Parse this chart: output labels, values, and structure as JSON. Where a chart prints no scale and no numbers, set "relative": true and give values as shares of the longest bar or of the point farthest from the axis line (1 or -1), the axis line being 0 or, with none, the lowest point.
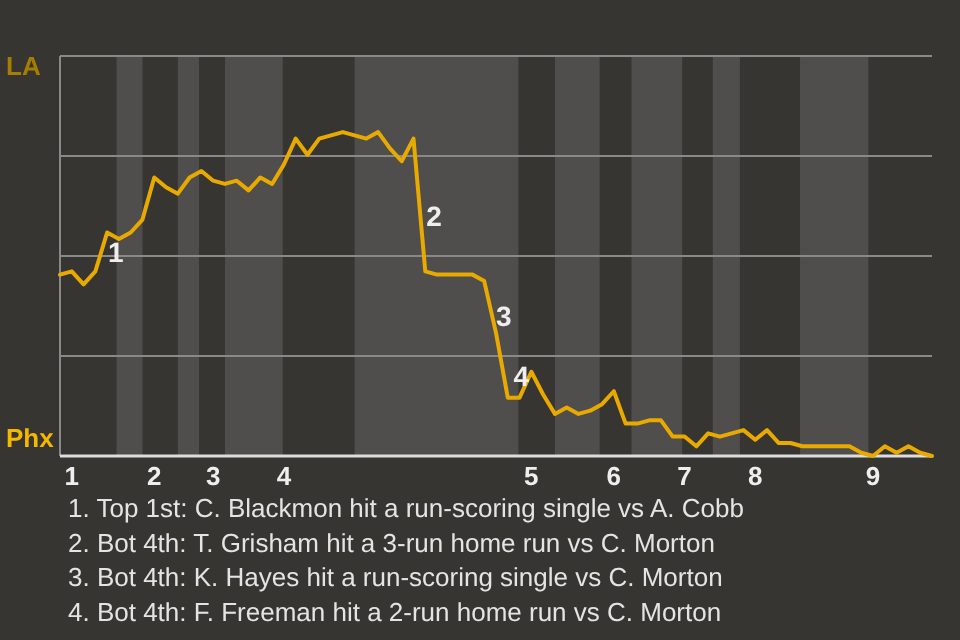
{
  "chart_data": {
    "type": "line",
    "relative": true,
    "categories": [
      null,
      "1",
      null,
      null,
      null,
      null,
      null,
      null,
      "2",
      null,
      null,
      null,
      null,
      "3",
      null,
      null,
      null,
      null,
      null,
      "4",
      null,
      null,
      null,
      null,
      null,
      null,
      null,
      null,
      null,
      null,
      null,
      null,
      null,
      null,
      null,
      null,
      null,
      null,
      null,
      null,
      "5",
      null,
      null,
      null,
      null,
      null,
      null,
      "6",
      null,
      null,
      null,
      null,
      null,
      "7",
      null,
      null,
      null,
      null,
      null,
      "8",
      null,
      null,
      null,
      null,
      null,
      null,
      null,
      null,
      null,
      "9",
      null,
      null,
      null,
      null,
      null
    ],
    "series": [
      {
        "color": "#e8a900",
        "values": [
          0.56,
          0.57,
          0.53,
          0.57,
          0.69,
          0.67,
          0.69,
          0.73,
          0.86,
          0.83,
          0.81,
          0.86,
          0.88,
          0.85,
          0.84,
          0.85,
          0.82,
          0.86,
          0.84,
          0.9,
          0.98,
          0.93,
          0.98,
          0.99,
          1,
          0.99,
          0.98,
          1,
          0.95,
          0.91,
          0.98,
          0.57,
          0.56,
          0.56,
          0.56,
          0.56,
          0.54,
          0.38,
          0.18,
          0.18,
          0.26,
          0.19,
          0.13,
          0.15,
          0.13,
          0.14,
          0.16,
          0.2,
          0.1,
          0.1,
          0.11,
          0.11,
          0.06,
          0.06,
          0.03,
          0.07,
          0.06,
          0.07,
          0.08,
          0.05,
          0.08,
          0.04,
          0.04,
          0.03,
          0.03,
          0.03,
          0.03,
          0.03,
          0.01,
          0,
          0.03,
          0.01,
          0.03,
          0.01,
          0
        ]
      }
    ],
    "grid": "y",
    "marker": "none",
    "annotations": [
      "LA",
      "Phx",
      "1",
      "2",
      "3",
      "4",
      "1. Top 1st: C. Blackmon hit a run-scoring single vs A. Cobb",
      "2. Bot 4th: T. Grisham hit a 3-run home run vs C. Morton",
      "3. Bot 4th: K. Hayes hit a run-scoring single vs C. Morton",
      "4. Bot 4th: F. Freeman hit a 2-run home run vs C. Morton"
    ]
  }
}
